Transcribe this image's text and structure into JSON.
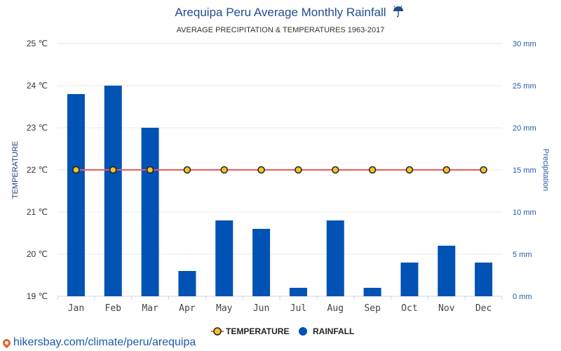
{
  "header": {
    "title": "Arequipa Peru Average Monthly Rainfall",
    "title_icon": "umbrella-rain-icon",
    "subtitle": "AVERAGE PRECIPITATION & TEMPERATURES 1963-2017"
  },
  "axes": {
    "left_title": "TEMPERATURE",
    "right_title": "Precipitation",
    "left_ticks": [
      "19 ℃",
      "20 ℃",
      "21 ℃",
      "22 ℃",
      "23 ℃",
      "24 ℃",
      "25 ℃"
    ],
    "right_ticks": [
      "0 mm",
      "5 mm",
      "10 mm",
      "15 mm",
      "20 mm",
      "25 mm",
      "30 mm"
    ]
  },
  "legend": {
    "temperature_label": "TEMPERATURE",
    "rainfall_label": "RAINFALL"
  },
  "footer": {
    "url": "hikersbay.com/climate/peru/arequipa",
    "icon": "location-pin-icon"
  },
  "colors": {
    "rainfall": "#0052b4",
    "temperature_line": "#e85c5c",
    "temperature_marker": "#f2c12e",
    "title": "#1f4e8c"
  },
  "chart_data": {
    "type": "bar",
    "title": "Arequipa Peru Average Monthly Rainfall",
    "subtitle": "AVERAGE PRECIPITATION & TEMPERATURES 1963-2017",
    "categories": [
      "Jan",
      "Feb",
      "Mar",
      "Apr",
      "May",
      "Jun",
      "Jul",
      "Aug",
      "Sep",
      "Oct",
      "Nov",
      "Dec"
    ],
    "series": [
      {
        "name": "RAINFALL",
        "type": "bar",
        "axis": "right",
        "unit": "mm",
        "values": [
          24,
          25,
          20,
          3,
          9,
          8,
          1,
          9,
          1,
          4,
          6,
          4
        ]
      },
      {
        "name": "TEMPERATURE",
        "type": "line",
        "axis": "left",
        "unit": "℃",
        "values": [
          22,
          22,
          22,
          22,
          22,
          22,
          22,
          22,
          22,
          22,
          22,
          22
        ]
      }
    ],
    "ylabel_left": "TEMPERATURE",
    "ylabel_right": "Precipitation",
    "ylim_left": [
      19,
      25
    ],
    "ylim_right": [
      0,
      30
    ],
    "grid": true,
    "legend_position": "bottom-center"
  }
}
